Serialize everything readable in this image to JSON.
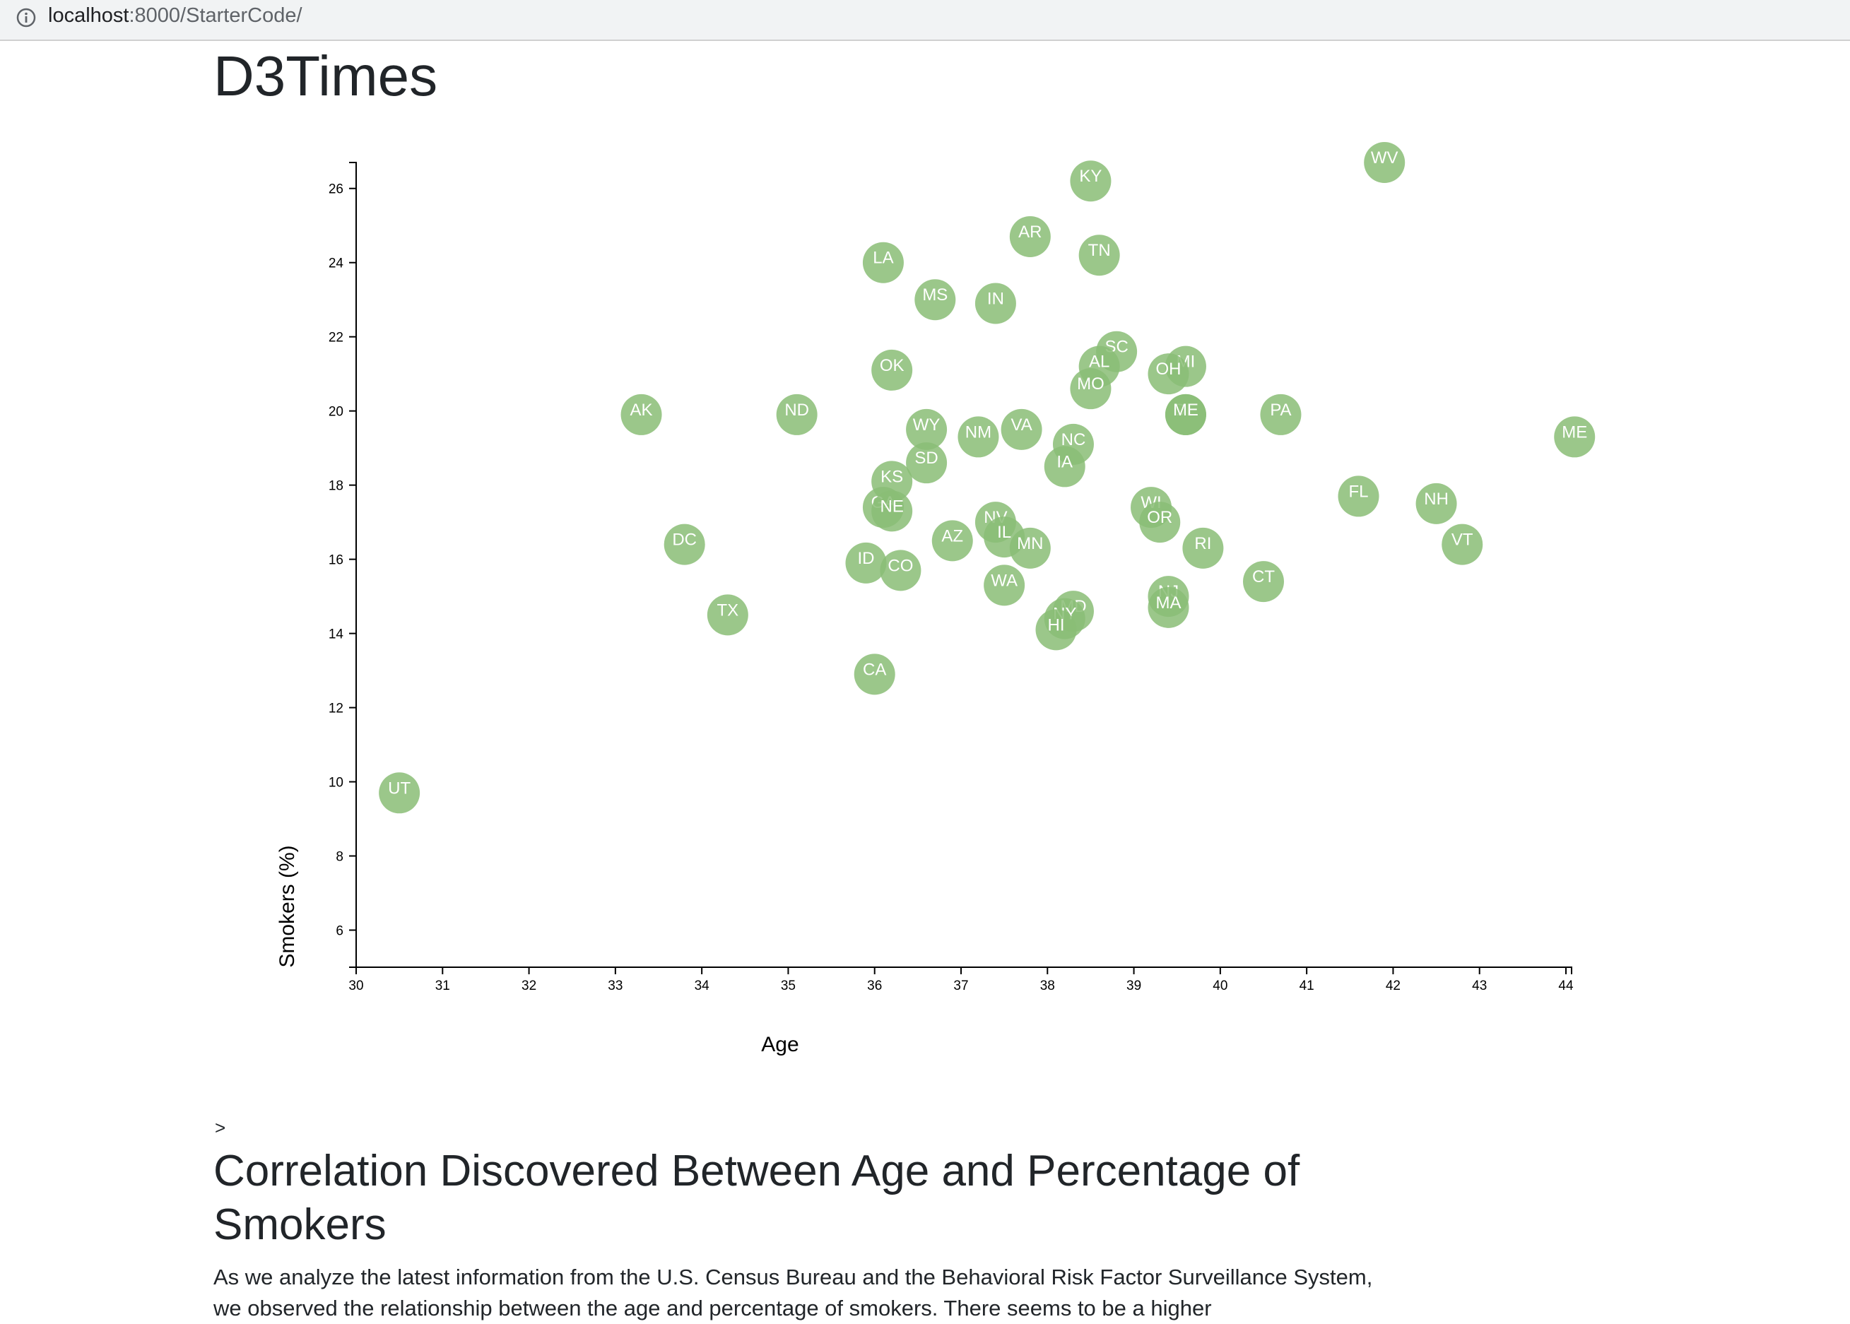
{
  "browser": {
    "url_host": "localhost",
    "url_rest": ":8000/StarterCode/"
  },
  "page": {
    "title": "D3Times",
    "caret": ">",
    "article_heading": "Correlation Discovered Between Age and Percentage of Smokers",
    "article_text": "As we analyze the latest information from the U.S. Census Bureau and the Behavioral Risk Factor Surveillance System, we observed the relationship between the age and percentage of smokers. There seems to be a higher"
  },
  "colors": {
    "circle": "#89bd76",
    "label": "#ffffff"
  },
  "chart_data": {
    "type": "scatter",
    "xlabel": "Age",
    "ylabel": "Smokers (%)",
    "xlim": [
      30,
      44
    ],
    "ylim": [
      5,
      26.7
    ],
    "x_ticks": [
      30,
      31,
      32,
      33,
      34,
      35,
      36,
      37,
      38,
      39,
      40,
      41,
      42,
      43,
      44
    ],
    "y_ticks": [
      6,
      8,
      10,
      12,
      14,
      16,
      18,
      20,
      22,
      24,
      26
    ],
    "grid": false,
    "points": [
      {
        "label": "WV",
        "x": 41.9,
        "y": 26.7
      },
      {
        "label": "KY",
        "x": 38.5,
        "y": 26.2
      },
      {
        "label": "AR",
        "x": 37.8,
        "y": 24.7
      },
      {
        "label": "TN",
        "x": 38.6,
        "y": 24.2
      },
      {
        "label": "LA",
        "x": 36.1,
        "y": 24.0
      },
      {
        "label": "MS",
        "x": 36.7,
        "y": 23.0
      },
      {
        "label": "IN",
        "x": 37.4,
        "y": 22.9
      },
      {
        "label": "SC",
        "x": 38.8,
        "y": 21.6
      },
      {
        "label": "AL",
        "x": 38.6,
        "y": 21.2
      },
      {
        "label": "MI",
        "x": 39.6,
        "y": 21.2
      },
      {
        "label": "OH",
        "x": 39.4,
        "y": 21.0
      },
      {
        "label": "OK",
        "x": 36.2,
        "y": 21.1
      },
      {
        "label": "MO",
        "x": 38.5,
        "y": 20.6
      },
      {
        "label": "DE",
        "x": 39.6,
        "y": 19.9
      },
      {
        "label": "ME",
        "x": 39.6,
        "y": 19.9
      },
      {
        "label": "AK",
        "x": 33.3,
        "y": 19.9
      },
      {
        "label": "ND",
        "x": 35.1,
        "y": 19.9
      },
      {
        "label": "PA",
        "x": 40.7,
        "y": 19.9
      },
      {
        "label": "WY",
        "x": 36.6,
        "y": 19.5
      },
      {
        "label": "VA",
        "x": 37.7,
        "y": 19.5
      },
      {
        "label": "NM",
        "x": 37.2,
        "y": 19.3
      },
      {
        "label": "ME",
        "x": 44.1,
        "y": 19.3
      },
      {
        "label": "NC",
        "x": 38.3,
        "y": 19.1
      },
      {
        "label": "IA",
        "x": 38.2,
        "y": 18.5
      },
      {
        "label": "SD",
        "x": 36.6,
        "y": 18.6
      },
      {
        "label": "KS",
        "x": 36.2,
        "y": 18.1
      },
      {
        "label": "FL",
        "x": 41.6,
        "y": 17.7
      },
      {
        "label": "NH",
        "x": 42.5,
        "y": 17.5
      },
      {
        "label": "GA",
        "x": 36.1,
        "y": 17.4
      },
      {
        "label": "NE",
        "x": 36.2,
        "y": 17.3
      },
      {
        "label": "WI",
        "x": 39.2,
        "y": 17.4
      },
      {
        "label": "OR",
        "x": 39.3,
        "y": 17.0
      },
      {
        "label": "NV",
        "x": 37.4,
        "y": 17.0
      },
      {
        "label": "IL",
        "x": 37.5,
        "y": 16.6
      },
      {
        "label": "MN",
        "x": 37.8,
        "y": 16.3
      },
      {
        "label": "AZ",
        "x": 36.9,
        "y": 16.5
      },
      {
        "label": "DC",
        "x": 33.8,
        "y": 16.4
      },
      {
        "label": "RI",
        "x": 39.8,
        "y": 16.3
      },
      {
        "label": "VT",
        "x": 42.8,
        "y": 16.4
      },
      {
        "label": "ID",
        "x": 35.9,
        "y": 15.9
      },
      {
        "label": "CO",
        "x": 36.3,
        "y": 15.7
      },
      {
        "label": "CT",
        "x": 40.5,
        "y": 15.4
      },
      {
        "label": "WA",
        "x": 37.5,
        "y": 15.3
      },
      {
        "label": "NJ",
        "x": 39.4,
        "y": 15.0
      },
      {
        "label": "MA",
        "x": 39.4,
        "y": 14.7
      },
      {
        "label": "MD",
        "x": 38.3,
        "y": 14.6
      },
      {
        "label": "NY",
        "x": 38.2,
        "y": 14.4
      },
      {
        "label": "HI",
        "x": 38.1,
        "y": 14.1
      },
      {
        "label": "TX",
        "x": 34.3,
        "y": 14.5
      },
      {
        "label": "CA",
        "x": 36.0,
        "y": 12.9
      },
      {
        "label": "UT",
        "x": 30.5,
        "y": 9.7
      }
    ]
  }
}
